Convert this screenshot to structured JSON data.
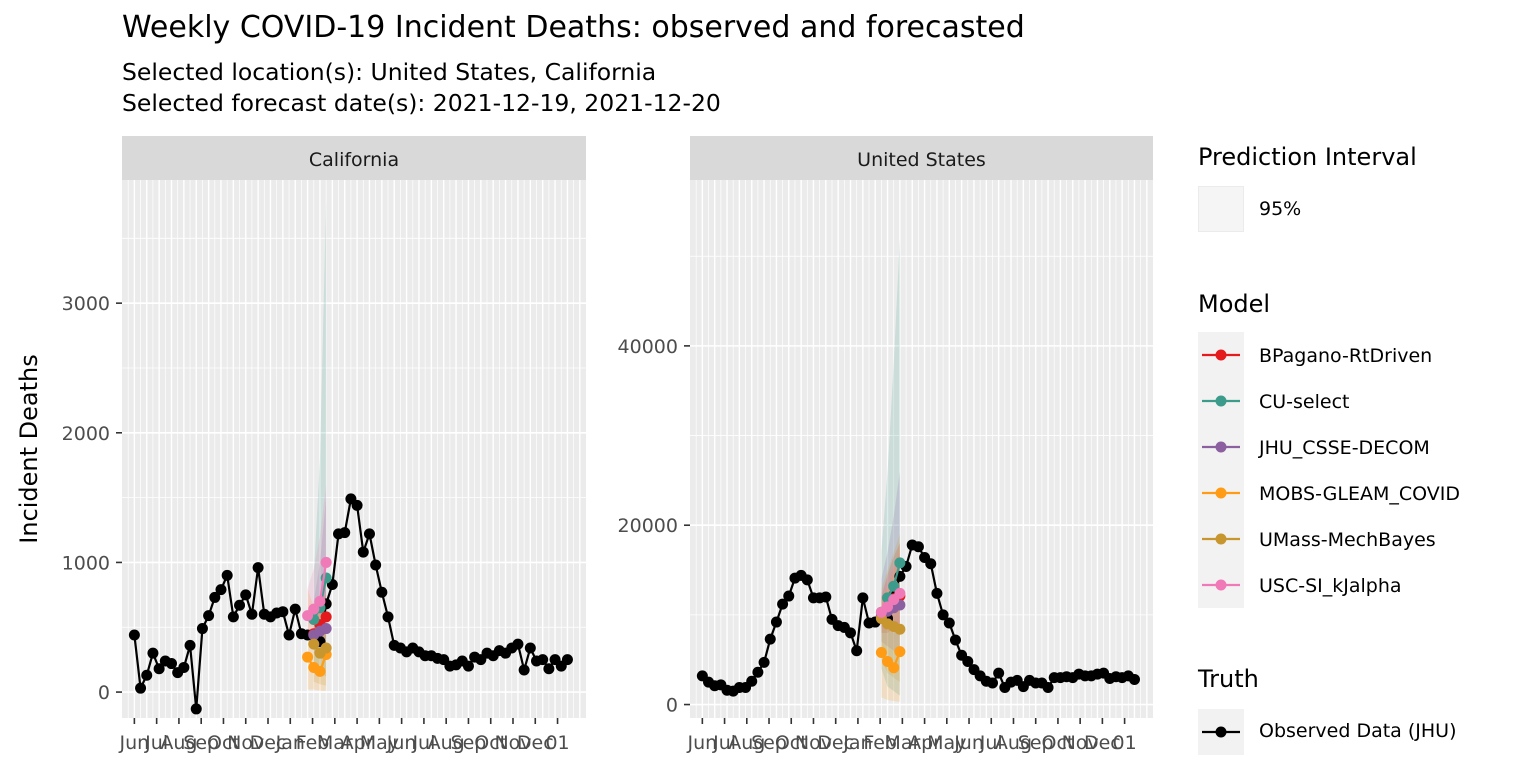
{
  "title": "Weekly COVID-19 Incident Deaths: observed and forecasted",
  "subtitle_locations": "Selected location(s): United States, California",
  "subtitle_dates": "Selected forecast date(s): 2021-12-19, 2021-12-20",
  "ylabel": "Incident Deaths",
  "legend": {
    "interval_title": "Prediction Interval",
    "interval_label": "95%",
    "model_title": "Model",
    "truth_title": "Truth",
    "truth_label": "Observed Data (JHU)"
  },
  "colors": {
    "panel_bg": "#ebebeb",
    "strip_bg": "#d9d9d9",
    "grid": "#ffffff",
    "truth": "#000000"
  },
  "chart_data": [
    {
      "type": "line",
      "facet": "California",
      "ylim": [
        -200,
        3950
      ],
      "yticks": [
        0,
        1000,
        2000,
        3000
      ],
      "xticklabels": [
        "Jun",
        "Jul",
        "Aug",
        "Sep",
        "Oct",
        "Nov",
        "Dec",
        "Jan",
        "Feb",
        "Mar",
        "Apr",
        "May",
        "Jun",
        "Jul",
        "Aug",
        "Sep",
        "Oct",
        "Nov",
        "Dec",
        "01"
      ],
      "x_week_range": [
        -2,
        73
      ],
      "truth_weeks": [
        0,
        1,
        2,
        3,
        4,
        5,
        6,
        7,
        8,
        9,
        10,
        11,
        12,
        13,
        14,
        15,
        16,
        17,
        18,
        19,
        20,
        21,
        22,
        23,
        24,
        25,
        26,
        27,
        28,
        29,
        30,
        31,
        32,
        33,
        34,
        35,
        36,
        37,
        38,
        39,
        40,
        41,
        42,
        43,
        44,
        45,
        46,
        47,
        48,
        49,
        50,
        51,
        52,
        53,
        54,
        55,
        56,
        57,
        58,
        59,
        60,
        61,
        62,
        63,
        64,
        65,
        66,
        67,
        68,
        69,
        70
      ],
      "truth_values": [
        440,
        30,
        130,
        300,
        180,
        240,
        220,
        150,
        190,
        360,
        -130,
        490,
        590,
        730,
        790,
        900,
        580,
        670,
        750,
        600,
        960,
        600,
        580,
        610,
        620,
        440,
        640,
        450,
        440,
        430,
        390,
        680,
        830,
        1220,
        1230,
        1490,
        1440,
        1080,
        1220,
        980,
        770,
        580,
        360,
        340,
        310,
        340,
        310,
        280,
        280,
        260,
        250,
        200,
        210,
        240,
        200,
        270,
        250,
        300,
        280,
        320,
        300,
        340,
        370,
        170,
        340,
        240,
        250,
        180,
        250,
        200,
        250
      ],
      "series": [
        {
          "name": "BPagano-RtDriven",
          "color": "#e41a1c",
          "weeks": [
            29,
            30,
            31
          ],
          "values": [
            450,
            520,
            580
          ],
          "lower": [
            350,
            380,
            410
          ],
          "upper": [
            600,
            720,
            850
          ]
        },
        {
          "name": "CU-select",
          "color": "#3c9b8a",
          "weeks": [
            29,
            30,
            31
          ],
          "values": [
            560,
            650,
            880
          ],
          "lower": [
            200,
            150,
            120
          ],
          "upper": [
            900,
            1800,
            3800
          ]
        },
        {
          "name": "JHU_CSSE-DECOM",
          "color": "#8b5fa0",
          "weeks": [
            29,
            30,
            31
          ],
          "values": [
            440,
            470,
            490
          ],
          "lower": [
            300,
            280,
            270
          ],
          "upper": [
            700,
            1000,
            1500
          ]
        },
        {
          "name": "MOBS-GLEAM_COVID",
          "color": "#ff9b14",
          "weeks": [
            28,
            29,
            30,
            31
          ],
          "values": [
            270,
            190,
            160,
            290
          ],
          "lower": [
            20,
            20,
            10,
            10
          ],
          "upper": [
            800,
            650,
            600,
            750
          ]
        },
        {
          "name": "UMass-MechBayes",
          "color": "#c8962e",
          "weeks": [
            29,
            30,
            31
          ],
          "values": [
            370,
            300,
            340
          ],
          "lower": [
            80,
            60,
            50
          ],
          "upper": [
            700,
            700,
            750
          ]
        },
        {
          "name": "USC-SI_kJalpha",
          "color": "#f07ab8",
          "weeks": [
            28,
            29,
            30,
            31
          ],
          "values": [
            590,
            640,
            700,
            1000
          ],
          "lower": [
            400,
            420,
            450,
            500
          ],
          "upper": [
            800,
            950,
            1200,
            1600
          ]
        }
      ]
    },
    {
      "type": "line",
      "facet": "United States",
      "ylim": [
        -1500,
        58500
      ],
      "yticks": [
        0,
        20000,
        40000
      ],
      "xticklabels": [
        "Jun",
        "Jul",
        "Aug",
        "Sep",
        "Oct",
        "Nov",
        "Dec",
        "Jan",
        "Feb",
        "Mar",
        "Apr",
        "May",
        "Jun",
        "Jul",
        "Aug",
        "Sep",
        "Oct",
        "Nov",
        "Dec",
        "01"
      ],
      "x_week_range": [
        -2,
        73
      ],
      "truth_weeks": [
        0,
        1,
        2,
        3,
        4,
        5,
        6,
        7,
        8,
        9,
        10,
        11,
        12,
        13,
        14,
        15,
        16,
        17,
        18,
        19,
        20,
        21,
        22,
        23,
        24,
        25,
        26,
        27,
        28,
        29,
        30,
        31,
        32,
        33,
        34,
        35,
        36,
        37,
        38,
        39,
        40,
        41,
        42,
        43,
        44,
        45,
        46,
        47,
        48,
        49,
        50,
        51,
        52,
        53,
        54,
        55,
        56,
        57,
        58,
        59,
        60,
        61,
        62,
        63,
        64,
        65,
        66,
        67,
        68,
        69,
        70
      ],
      "truth_values": [
        3200,
        2500,
        2100,
        2200,
        1600,
        1500,
        1900,
        1900,
        2600,
        3600,
        4700,
        7300,
        9200,
        11200,
        12100,
        14100,
        14400,
        13900,
        11900,
        11900,
        12000,
        9500,
        8800,
        8600,
        8000,
        6000,
        11900,
        9100,
        9200,
        9800,
        9600,
        12200,
        14300,
        15400,
        17800,
        17600,
        16400,
        15700,
        12400,
        10000,
        9100,
        7200,
        5500,
        4800,
        3900,
        3200,
        2600,
        2400,
        3500,
        1900,
        2500,
        2700,
        2000,
        2700,
        2400,
        2400,
        1900,
        3000,
        3000,
        3100,
        3000,
        3400,
        3200,
        3200,
        3400,
        3500,
        2900,
        3100,
        3000,
        3200,
        2800
      ],
      "series": [
        {
          "name": "BPagano-RtDriven",
          "color": "#e41a1c",
          "weeks": [
            29,
            30,
            31,
            32
          ],
          "values": [
            9800,
            10700,
            11800,
            12100
          ],
          "lower": [
            8000,
            8000,
            8500,
            8500
          ],
          "upper": [
            12000,
            14500,
            16500,
            18000
          ]
        },
        {
          "name": "CU-select",
          "color": "#3c9b8a",
          "weeks": [
            29,
            30,
            31,
            32
          ],
          "values": [
            10300,
            11900,
            13200,
            15800
          ],
          "lower": [
            4000,
            2000,
            1500,
            1000
          ],
          "upper": [
            17000,
            26000,
            38000,
            52000
          ]
        },
        {
          "name": "JHU_CSSE-DECOM",
          "color": "#8b5fa0",
          "weeks": [
            29,
            30,
            31,
            32
          ],
          "values": [
            9900,
            10400,
            10800,
            11100
          ],
          "lower": [
            7000,
            6500,
            6000,
            5500
          ],
          "upper": [
            14000,
            17000,
            21000,
            26000
          ]
        },
        {
          "name": "MOBS-GLEAM_COVID",
          "color": "#ff9b14",
          "weeks": [
            29,
            30,
            31,
            32
          ],
          "values": [
            5800,
            4800,
            4100,
            5900
          ],
          "lower": [
            800,
            500,
            400,
            300
          ],
          "upper": [
            12000,
            13000,
            15000,
            18000
          ]
        },
        {
          "name": "UMass-MechBayes",
          "color": "#c8962e",
          "weeks": [
            29,
            30,
            31,
            32
          ],
          "values": [
            9600,
            9000,
            8700,
            8400
          ],
          "lower": [
            5000,
            3500,
            3000,
            2500
          ],
          "upper": [
            13000,
            15000,
            17000,
            19000
          ]
        },
        {
          "name": "USC-SI_kJalpha",
          "color": "#f07ab8",
          "weeks": [
            29,
            30,
            31,
            32
          ],
          "values": [
            10300,
            10900,
            11700,
            12400
          ],
          "lower": [
            8500,
            8500,
            9000,
            9000
          ],
          "upper": [
            12500,
            14000,
            15500,
            17000
          ]
        }
      ]
    }
  ]
}
